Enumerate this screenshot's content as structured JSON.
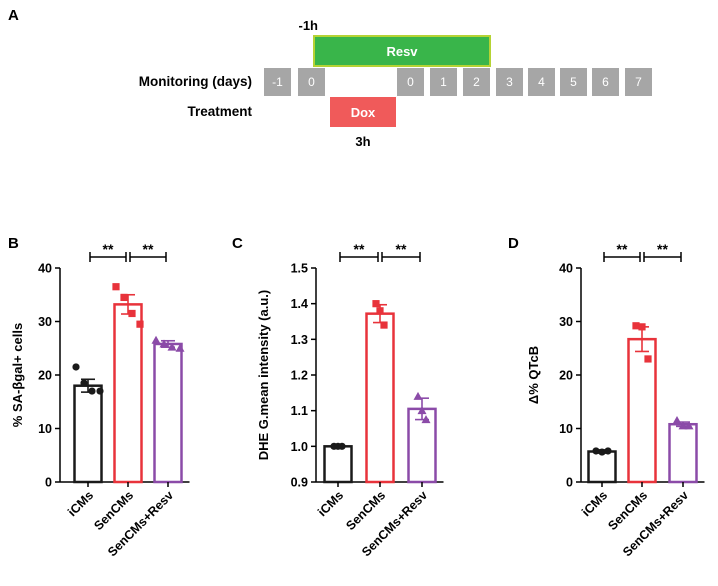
{
  "panel_a": {
    "letter": "A",
    "monitoring_label": "Monitoring (days)",
    "treatment_label": "Treatment",
    "days": [
      "-1",
      "0",
      "0",
      "1",
      "2",
      "3",
      "4",
      "5",
      "6",
      "7"
    ],
    "resv": {
      "label": "Resv",
      "time": "-1h"
    },
    "dox": {
      "label": "Dox",
      "time": "3h"
    },
    "colors": {
      "day_box": "#a6a6a6",
      "resv": "#39b54a",
      "resv_border": "#b5d334",
      "dox": "#f05a5a"
    }
  },
  "colors": {
    "iCMs": "#1a1a1a",
    "SenCMs": "#e8333b",
    "SenCMs+Resv": "#8b4ba8"
  },
  "significance_label": "**",
  "chart_data": [
    {
      "panel": "B",
      "type": "bar",
      "title": "",
      "xlabel": "",
      "ylabel": "% SA-βgal+ cells",
      "ylim": [
        0,
        40
      ],
      "yticks": [
        "0",
        "10",
        "20",
        "30",
        "40"
      ],
      "categories": [
        "iCMs",
        "SenCMs",
        "SenCMs+Resv"
      ],
      "values": [
        18,
        33.2,
        25.8
      ],
      "sem": [
        1.2,
        1.8,
        0.6
      ],
      "points": [
        [
          21.5,
          18.5,
          17,
          17
        ],
        [
          36.5,
          34.5,
          31.5,
          29.5
        ],
        [
          26.5,
          25.8,
          25.2,
          25
        ]
      ],
      "marker": [
        "circle",
        "square",
        "triangle"
      ],
      "significance": [
        {
          "from": 0,
          "to": 1,
          "label": "**"
        },
        {
          "from": 1,
          "to": 2,
          "label": "**"
        }
      ]
    },
    {
      "panel": "C",
      "type": "bar",
      "title": "",
      "xlabel": "",
      "ylabel": "DHE G.mean intensity (a.u.)",
      "ylim": [
        0.9,
        1.5
      ],
      "yticks": [
        "0.9",
        "1.0",
        "1.1",
        "1.2",
        "1.3",
        "1.4",
        "1.5"
      ],
      "categories": [
        "iCMs",
        "SenCMs",
        "SenCMs+Resv"
      ],
      "values": [
        1.0,
        1.372,
        1.105
      ],
      "sem": [
        0.0,
        0.025,
        0.03
      ],
      "points": [
        [
          1.0,
          1.0,
          1.0
        ],
        [
          1.4,
          1.38,
          1.34
        ],
        [
          1.14,
          1.1,
          1.075
        ]
      ],
      "marker": [
        "circle",
        "square",
        "triangle"
      ],
      "significance": [
        {
          "from": 0,
          "to": 1,
          "label": "**"
        },
        {
          "from": 1,
          "to": 2,
          "label": "**"
        }
      ]
    },
    {
      "panel": "D",
      "type": "bar",
      "title": "",
      "xlabel": "",
      "ylabel": "Δ% QTcB",
      "ylim": [
        0,
        40
      ],
      "yticks": [
        "0",
        "10",
        "20",
        "30",
        "40"
      ],
      "categories": [
        "iCMs",
        "SenCMs",
        "SenCMs+Resv"
      ],
      "values": [
        5.7,
        26.7,
        10.8
      ],
      "sem": [
        0.3,
        2.3,
        0.4
      ],
      "points": [
        [
          5.8,
          5.6,
          5.8
        ],
        [
          29.2,
          29.0,
          23.0
        ],
        [
          11.5,
          10.5,
          10.5
        ]
      ],
      "marker": [
        "circle",
        "square",
        "triangle"
      ],
      "significance": [
        {
          "from": 0,
          "to": 1,
          "label": "**"
        },
        {
          "from": 1,
          "to": 2,
          "label": "**"
        }
      ]
    }
  ]
}
